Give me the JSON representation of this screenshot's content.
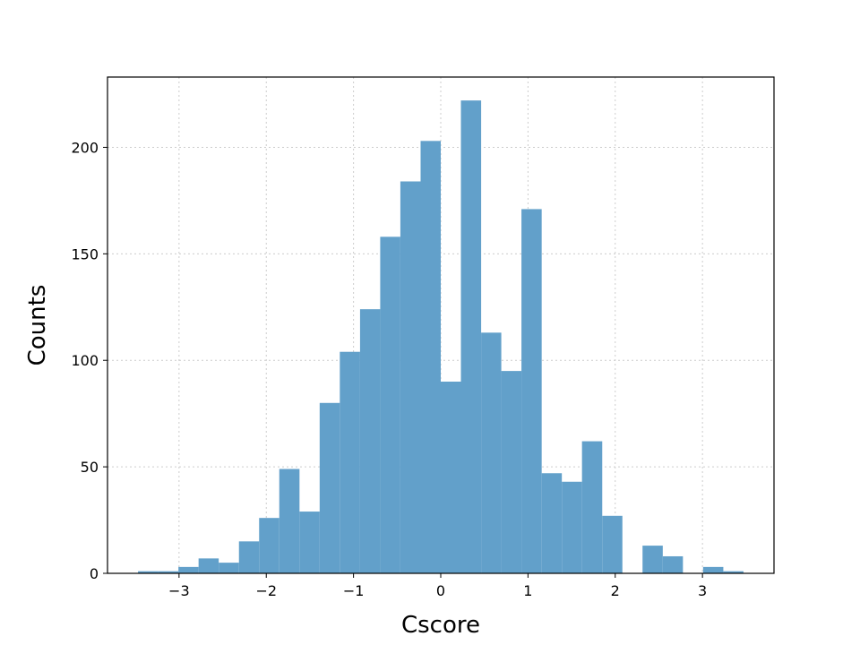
{
  "chart_data": {
    "type": "histogram",
    "x_label": "Cscore",
    "y_label": "Counts",
    "bins": [
      -3.47,
      -3.239,
      -3.007,
      -2.776,
      -2.545,
      -2.313,
      -2.082,
      -1.851,
      -1.619,
      -1.388,
      -1.157,
      -0.925,
      -0.694,
      -0.463,
      -0.231,
      0,
      0.231,
      0.463,
      0.694,
      0.925,
      1.157,
      1.388,
      1.619,
      1.851,
      2.082,
      2.313,
      2.545,
      2.776,
      3.007,
      3.239,
      3.47
    ],
    "values": [
      1,
      1,
      3,
      7,
      5,
      15,
      26,
      49,
      29,
      80,
      104,
      124,
      158,
      184,
      203,
      90,
      222,
      113,
      95,
      171,
      47,
      43,
      62,
      27,
      0,
      13,
      8,
      0,
      3,
      1
    ],
    "color": "#62a0ca",
    "xlim": [
      -3.82,
      3.82
    ],
    "xticks": [
      {
        "value": -3,
        "label": "−3"
      },
      {
        "value": -2,
        "label": "−2"
      },
      {
        "value": -1,
        "label": "−1"
      },
      0,
      1,
      2,
      3
    ],
    "ylim": [
      0,
      233
    ],
    "yticks": [
      0,
      50,
      100,
      150,
      200
    ],
    "grid": true
  }
}
